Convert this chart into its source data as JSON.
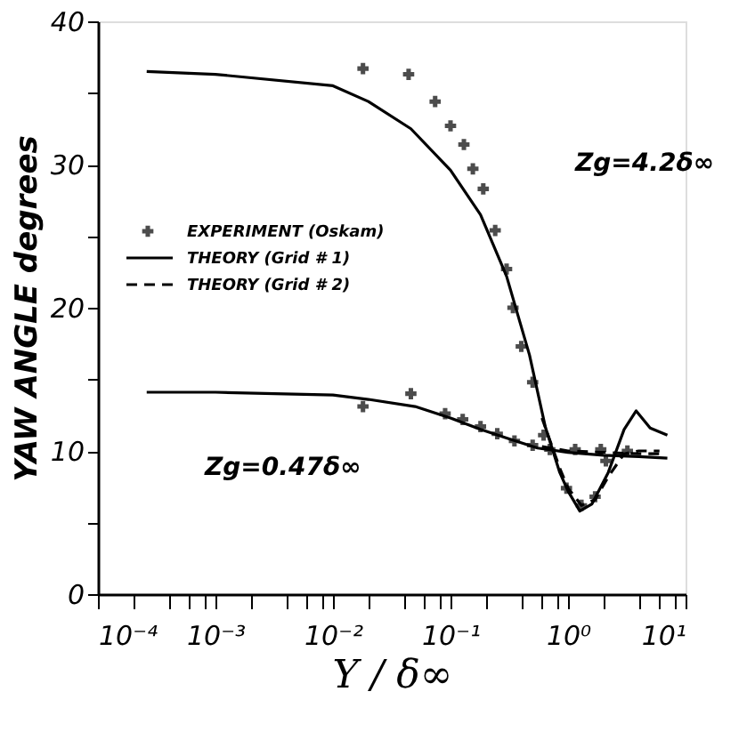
{
  "chart_data": {
    "type": "line",
    "xlabel": "Y / δ∞",
    "ylabel": "YAW ANGLE degrees",
    "log": "x",
    "xlim": [
      0.0001,
      10
    ],
    "ylim": [
      0,
      40
    ],
    "xticks": [
      {
        "value": 0.0001,
        "label": "10⁻⁴"
      },
      {
        "value": 0.001,
        "label": "10⁻³"
      },
      {
        "value": 0.01,
        "label": "10⁻²"
      },
      {
        "value": 0.1,
        "label": "10⁻¹"
      },
      {
        "value": 1,
        "label": "10⁰"
      },
      {
        "value": 10,
        "label": "10¹"
      },
      {
        "value": 0.0002,
        "label": null
      },
      {
        "value": 0.0004,
        "label": null
      },
      {
        "value": 0.0006,
        "label": null
      },
      {
        "value": 0.0008,
        "label": null
      },
      {
        "value": 0.002,
        "label": null
      },
      {
        "value": 0.004,
        "label": null
      },
      {
        "value": 0.006,
        "label": null
      },
      {
        "value": 0.008,
        "label": null
      },
      {
        "value": 0.02,
        "label": null
      },
      {
        "value": 0.04,
        "label": null
      },
      {
        "value": 0.06,
        "label": null
      },
      {
        "value": 0.08,
        "label": null
      },
      {
        "value": 0.2,
        "label": null
      },
      {
        "value": 0.4,
        "label": null
      },
      {
        "value": 0.6,
        "label": null
      },
      {
        "value": 0.8,
        "label": null
      },
      {
        "value": 2,
        "label": null
      },
      {
        "value": 4,
        "label": null
      },
      {
        "value": 6,
        "label": null
      },
      {
        "value": 8,
        "label": null
      }
    ],
    "yticks": [
      0,
      10,
      20,
      30,
      40,
      {
        "value": 5,
        "label": null
      },
      {
        "value": 15,
        "label": null
      },
      {
        "value": 25,
        "label": null
      },
      {
        "value": 35,
        "label": null
      }
    ],
    "grid": false,
    "legend": "top left",
    "series": [
      {
        "name": "EXPERIMENT (Oskam)",
        "type": "scatter",
        "marker": "cross",
        "color": "#000000",
        "x": [
          0.018,
          0.044,
          0.074,
          0.1,
          0.13,
          0.155,
          0.19,
          0.24,
          0.3,
          0.34,
          0.4,
          0.5,
          0.62,
          0.97,
          1.3,
          1.7,
          2.1
        ],
        "values": [
          36.7,
          36.3,
          34.4,
          32.7,
          31.4,
          29.7,
          28.3,
          25.4,
          22.7,
          20.0,
          17.3,
          14.8,
          11.1,
          7.4,
          6.2,
          6.8,
          9.3
        ]
      },
      {
        "type": "scatter",
        "marker": "cross",
        "color": "#000000",
        "x": [
          0.018,
          0.046,
          0.09,
          0.127,
          0.18,
          0.25,
          0.35,
          0.5,
          0.7,
          1.15,
          1.9,
          3.2
        ],
        "values": [
          13.1,
          14.0,
          12.6,
          12.2,
          11.7,
          11.2,
          10.7,
          10.4,
          10.1,
          10.1,
          10.1,
          10.0
        ]
      },
      {
        "name": "THEORY (Grid # 1)",
        "line_style": "solid",
        "color": "#000000",
        "x": [
          0.00026,
          0.001,
          0.01,
          0.02,
          0.046,
          0.1,
          0.18,
          0.3,
          0.47,
          0.64,
          0.85,
          1.0,
          1.26,
          1.6,
          2.2,
          3.0,
          3.8,
          5.0,
          7.0
        ],
        "values": [
          36.5,
          36.3,
          35.5,
          34.4,
          32.5,
          29.6,
          26.5,
          22.2,
          16.7,
          11.7,
          8.5,
          7.2,
          5.8,
          6.3,
          8.5,
          11.5,
          12.8,
          11.6,
          11.1
        ]
      },
      {
        "line_style": "solid",
        "color": "#000000",
        "x": [
          0.00026,
          0.001,
          0.01,
          0.02,
          0.05,
          0.1,
          0.18,
          0.3,
          0.55,
          1.0,
          2.0,
          4.0,
          7.0
        ],
        "values": [
          14.1,
          14.1,
          13.9,
          13.6,
          13.1,
          12.3,
          11.5,
          10.9,
          10.2,
          9.9,
          9.7,
          9.6,
          9.5
        ]
      },
      {
        "name": "THEORY (Grid # 2)",
        "line_style": "dashed",
        "color": "#000000",
        "x": [
          0.6,
          0.85,
          1.0,
          1.3,
          1.7,
          2.2,
          3.0,
          4.0,
          6.0
        ],
        "values": [
          12.3,
          8.8,
          7.4,
          6.2,
          6.6,
          8.2,
          9.8,
          10.0,
          10.0
        ]
      },
      {
        "line_style": "dashed",
        "color": "#000000",
        "x": [
          0.6,
          1.0,
          2.0,
          4.0,
          6.0
        ],
        "values": [
          10.3,
          10.0,
          9.9,
          9.8,
          9.8
        ]
      }
    ],
    "annotations": [
      "Zg=4.2δ∞",
      "Zg=0.47δ∞"
    ]
  }
}
